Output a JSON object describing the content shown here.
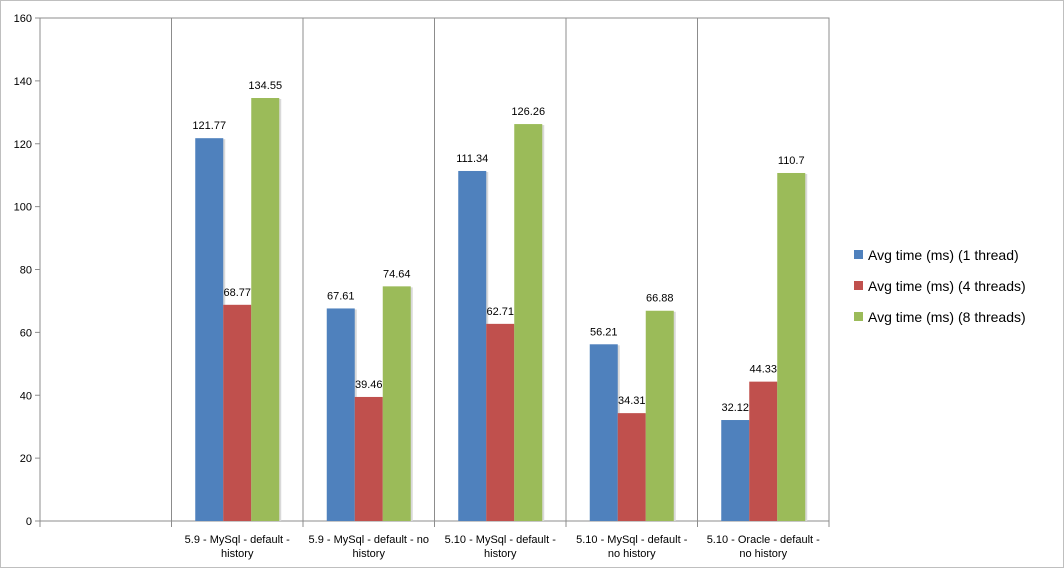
{
  "chart_data": {
    "type": "bar",
    "categories": [
      "",
      "5.9 - MySql - default - history",
      "5.9 - MySql - default - no history",
      "5.10 - MySql - default - history",
      "5.10 - MySql - default - no history",
      "5.10 - Oracle - default - no history"
    ],
    "category_lines": [
      [],
      [
        "5.9 - MySql - default -",
        "history"
      ],
      [
        "5.9 - MySql - default - no",
        "history"
      ],
      [
        "5.10 - MySql - default -",
        "history"
      ],
      [
        "5.10 - MySql - default -",
        "no history"
      ],
      [
        "5.10 - Oracle - default -",
        "no history"
      ]
    ],
    "series": [
      {
        "name": "Avg time (ms) (1 thread)",
        "color": "#4f81bd",
        "values": [
          null,
          121.77,
          67.61,
          111.34,
          56.21,
          32.12
        ],
        "labels": [
          "",
          "121.77",
          "67.61",
          "111.34",
          "56.21",
          "32.12"
        ]
      },
      {
        "name": "Avg time (ms) (4 threads)",
        "color": "#c0504d",
        "values": [
          null,
          68.77,
          39.46,
          62.71,
          34.31,
          44.33
        ],
        "labels": [
          "",
          "68.77",
          "39.46",
          "62.71",
          "34.31",
          "44.33"
        ]
      },
      {
        "name": "Avg time (ms) (8 threads)",
        "color": "#9bbb59",
        "values": [
          null,
          134.55,
          74.64,
          126.26,
          66.88,
          110.7
        ],
        "labels": [
          "",
          "134.55",
          "74.64",
          "126.26",
          "66.88",
          "110.7"
        ]
      }
    ],
    "y_ticks": [
      "0",
      "20",
      "40",
      "60",
      "80",
      "100",
      "120",
      "140",
      "160"
    ],
    "ylim": [
      0,
      160
    ],
    "title": "",
    "xlabel": "",
    "ylabel": "",
    "grid": "vertical category separators",
    "legend_position": "right"
  }
}
